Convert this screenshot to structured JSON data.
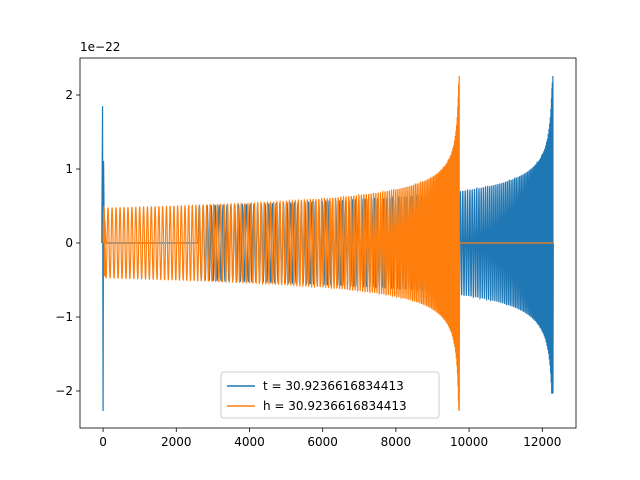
{
  "chart_data": {
    "type": "line",
    "title": "",
    "xlabel": "",
    "ylabel": "",
    "xlim": [
      -630,
      12920
    ],
    "ylim": [
      -2.5e-22,
      2.5e-22
    ],
    "y_offset_label": "1e−22",
    "x_ticks": [
      0,
      2000,
      4000,
      6000,
      8000,
      10000,
      12000
    ],
    "x_tick_labels": [
      "0",
      "2000",
      "4000",
      "6000",
      "8000",
      "10000",
      "12000"
    ],
    "y_ticks": [
      -2e-22,
      -1e-22,
      0,
      1e-22,
      2e-22
    ],
    "y_tick_labels": [
      "−2",
      "−1",
      "0",
      "1",
      "2"
    ],
    "grid": false,
    "legend_position": "lower center",
    "series": [
      {
        "name": "t = 30.9236616834413",
        "color": "#1f77b4",
        "x_range": [
          0,
          12290
        ],
        "initial_spike": {
          "x": 0,
          "max": 1.85e-22,
          "min": -2.27e-22
        },
        "zero_until": 2600,
        "chirp": {
          "start": 2600,
          "end": 12290,
          "amp_start": 5e-23,
          "amp_end": 2.3e-22,
          "peak_min": -2.03e-22
        },
        "post_merger": 0
      },
      {
        "name": "h = 30.9236616834413",
        "color": "#ff7f0e",
        "x_range": [
          0,
          12290
        ],
        "initial_spike": {
          "x": 40,
          "max": 5e-23,
          "min": -4.5e-23
        },
        "zero_until": 0,
        "chirp": {
          "start": 0,
          "end": 9730,
          "amp_start": 4.7e-23,
          "amp_end": 2.3e-22,
          "peak_min": -2.27e-22
        },
        "post_merger": 0
      }
    ]
  }
}
